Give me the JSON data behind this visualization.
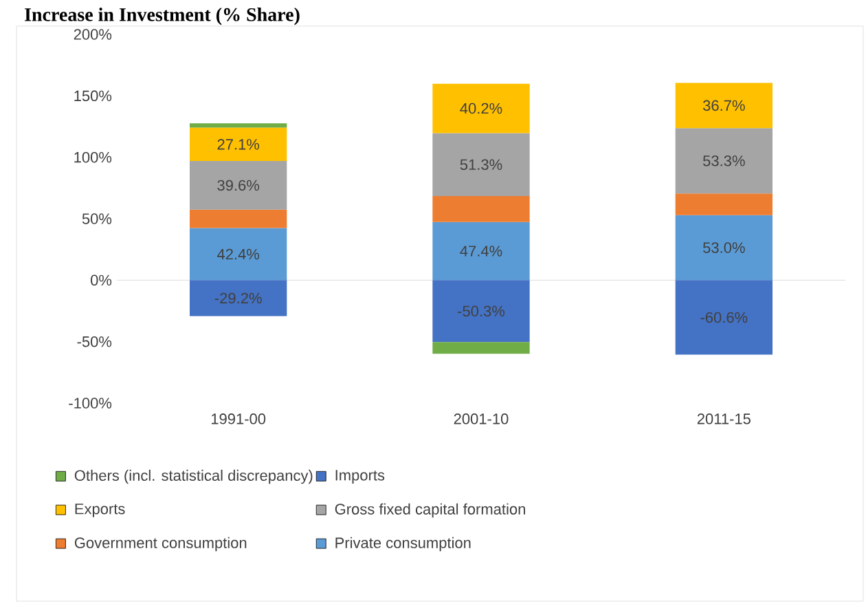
{
  "chart_data": {
    "type": "bar",
    "stacked": true,
    "title": "Increase in Investment (% Share)",
    "categories": [
      "1991-00",
      "2001-10",
      "2011-15"
    ],
    "series": [
      {
        "name": "Private consumption",
        "color": "#5b9bd5",
        "values": [
          42.4,
          47.4,
          53.0
        ],
        "value_labels": [
          "42.4%",
          "47.4%",
          "53.0%"
        ]
      },
      {
        "name": "Government consumption",
        "color": "#ed7d31",
        "values": [
          15,
          21,
          17.5
        ],
        "value_labels": [
          null,
          null,
          null
        ]
      },
      {
        "name": "Gross fixed capital formation",
        "color": "#a5a5a5",
        "values": [
          39.6,
          51.3,
          53.3
        ],
        "value_labels": [
          "39.6%",
          "51.3%",
          "53.3%"
        ]
      },
      {
        "name": "Exports",
        "color": "#ffc000",
        "values": [
          27.1,
          40.2,
          36.7
        ],
        "value_labels": [
          "27.1%",
          "40.2%",
          "36.7%"
        ]
      },
      {
        "name": "Imports",
        "color": "#4472c4",
        "values": [
          -29.2,
          -50.3,
          -60.6
        ],
        "value_labels": [
          "-29.2%",
          "-50.3%",
          "-60.6%"
        ]
      },
      {
        "name": "Others (incl. statistical discrepancy)",
        "color": "#70ad47",
        "values": [
          3.5,
          -9.5,
          0
        ],
        "value_labels": [
          null,
          null,
          null
        ]
      }
    ],
    "ylim": [
      -100,
      200
    ],
    "yticks": [
      {
        "value": -100,
        "label": "-100%"
      },
      {
        "value": -50,
        "label": "-50%"
      },
      {
        "value": 0,
        "label": "0%"
      },
      {
        "value": 50,
        "label": "50%"
      },
      {
        "value": 100,
        "label": "100%"
      },
      {
        "value": 150,
        "label": "150%"
      },
      {
        "value": 200,
        "label": "200%"
      }
    ],
    "legend": "bottom"
  }
}
